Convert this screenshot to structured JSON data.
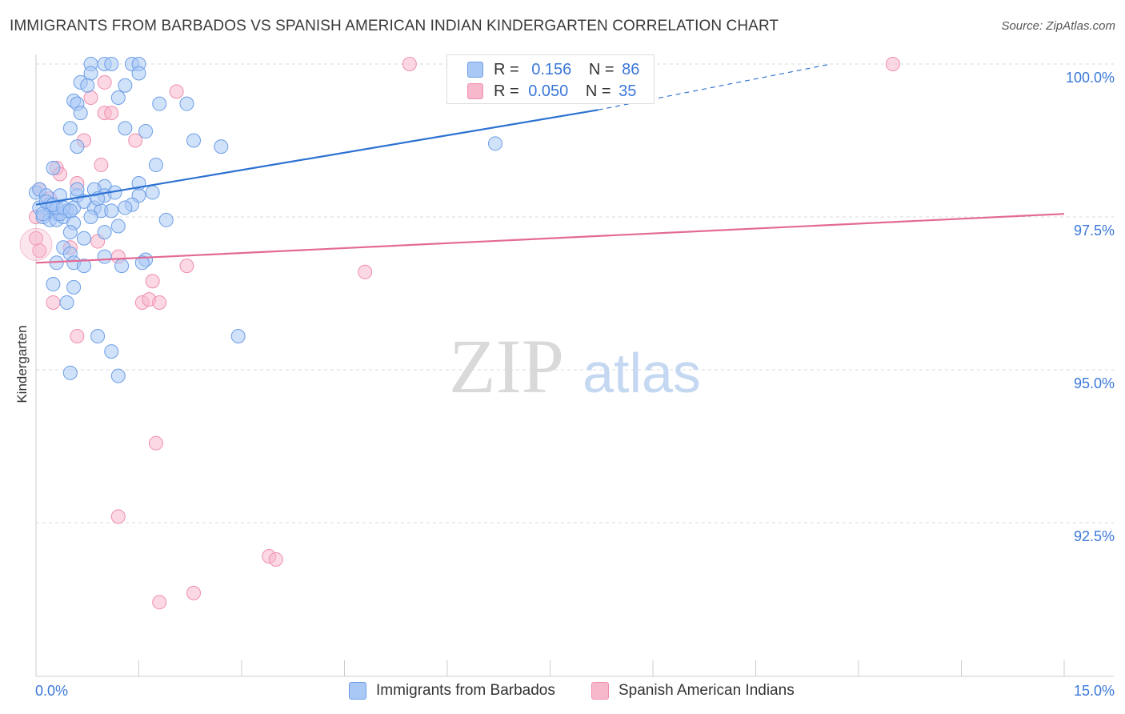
{
  "title": "IMMIGRANTS FROM BARBADOS VS SPANISH AMERICAN INDIAN KINDERGARTEN CORRELATION CHART",
  "source": "Source: ZipAtlas.com",
  "watermark": {
    "zip": "ZIP",
    "atlas": "atlas"
  },
  "legend": {
    "r_label": "R =",
    "n_label": "N =",
    "blue": {
      "r": "0.156",
      "n": "86"
    },
    "pink": {
      "r": "0.050",
      "n": "35"
    }
  },
  "colors": {
    "blue_fill": "#a9c8f5",
    "blue_stroke": "#6d9ee6",
    "blue_line": "#2d72d2",
    "pink_fill": "#f7b8cc",
    "pink_stroke": "#ef8fae",
    "pink_line": "#e46a96",
    "tick_text": "#3b78d8",
    "grid": "#d8d8d8"
  },
  "chart_data": {
    "type": "scatter",
    "title": "IMMIGRANTS FROM BARBADOS VS SPANISH AMERICAN INDIAN KINDERGARTEN CORRELATION CHART",
    "xlabel": "",
    "ylabel": "Kindergarten",
    "xlim": [
      0,
      15
    ],
    "ylim": [
      90.2,
      100.2
    ],
    "x_tick_labels": [
      "0.0%",
      "15.0%"
    ],
    "y_ticks": [
      92.5,
      95.0,
      97.5,
      100.0
    ],
    "y_tick_labels": [
      "92.5%",
      "95.0%",
      "97.5%",
      "100.0%"
    ],
    "grid": true,
    "series": [
      {
        "name": "Immigrants from Barbados",
        "color": "blue",
        "R": 0.156,
        "N": 86,
        "trend": {
          "x": [
            0.0,
            8.2
          ],
          "y": [
            97.7,
            99.25
          ],
          "dashed_to": [
            11.6,
            100.0
          ]
        },
        "points": [
          [
            0.8,
            100.0
          ],
          [
            1.0,
            100.0
          ],
          [
            1.1,
            100.0
          ],
          [
            1.4,
            100.0
          ],
          [
            1.5,
            100.0
          ],
          [
            0.8,
            99.85
          ],
          [
            1.5,
            99.85
          ],
          [
            0.65,
            99.7
          ],
          [
            0.75,
            99.65
          ],
          [
            1.3,
            99.65
          ],
          [
            0.55,
            99.4
          ],
          [
            0.6,
            99.35
          ],
          [
            1.2,
            99.45
          ],
          [
            1.8,
            99.35
          ],
          [
            2.2,
            99.35
          ],
          [
            0.65,
            99.2
          ],
          [
            1.3,
            98.95
          ],
          [
            0.5,
            98.95
          ],
          [
            1.6,
            98.9
          ],
          [
            2.3,
            98.75
          ],
          [
            0.6,
            98.65
          ],
          [
            2.7,
            98.65
          ],
          [
            6.7,
            98.7
          ],
          [
            0.25,
            98.3
          ],
          [
            1.5,
            98.05
          ],
          [
            1.0,
            98.0
          ],
          [
            0.85,
            97.95
          ],
          [
            0.0,
            97.9
          ],
          [
            0.05,
            97.95
          ],
          [
            0.15,
            97.85
          ],
          [
            0.35,
            97.85
          ],
          [
            0.6,
            97.85
          ],
          [
            1.0,
            97.85
          ],
          [
            1.5,
            97.85
          ],
          [
            1.7,
            97.9
          ],
          [
            0.05,
            97.65
          ],
          [
            0.2,
            97.6
          ],
          [
            0.3,
            97.55
          ],
          [
            0.45,
            97.6
          ],
          [
            0.55,
            97.65
          ],
          [
            0.85,
            97.65
          ],
          [
            0.95,
            97.6
          ],
          [
            1.1,
            97.6
          ],
          [
            0.1,
            97.5
          ],
          [
            0.2,
            97.45
          ],
          [
            0.3,
            97.45
          ],
          [
            0.4,
            97.5
          ],
          [
            0.55,
            97.4
          ],
          [
            1.2,
            97.35
          ],
          [
            1.9,
            97.45
          ],
          [
            0.5,
            97.25
          ],
          [
            0.7,
            97.15
          ],
          [
            1.0,
            97.25
          ],
          [
            0.4,
            97.0
          ],
          [
            0.5,
            96.9
          ],
          [
            1.0,
            96.85
          ],
          [
            1.25,
            96.7
          ],
          [
            1.6,
            96.8
          ],
          [
            1.55,
            96.75
          ],
          [
            0.3,
            96.75
          ],
          [
            0.55,
            96.75
          ],
          [
            0.7,
            96.7
          ],
          [
            0.25,
            96.4
          ],
          [
            0.55,
            96.35
          ],
          [
            0.45,
            96.1
          ],
          [
            0.9,
            95.55
          ],
          [
            2.95,
            95.55
          ],
          [
            1.1,
            95.3
          ],
          [
            0.5,
            94.95
          ],
          [
            1.2,
            94.9
          ],
          [
            0.2,
            97.7
          ],
          [
            0.7,
            97.75
          ],
          [
            1.4,
            97.7
          ],
          [
            0.1,
            97.55
          ],
          [
            0.35,
            97.55
          ],
          [
            0.9,
            97.8
          ],
          [
            1.15,
            97.9
          ],
          [
            0.15,
            97.75
          ],
          [
            0.3,
            97.65
          ],
          [
            1.75,
            98.35
          ],
          [
            0.6,
            97.95
          ],
          [
            0.25,
            97.7
          ],
          [
            0.4,
            97.65
          ],
          [
            0.8,
            97.5
          ],
          [
            0.5,
            97.6
          ],
          [
            1.3,
            97.65
          ]
        ]
      },
      {
        "name": "Spanish American Indians",
        "color": "pink",
        "R": 0.05,
        "N": 35,
        "trend": {
          "x": [
            0.0,
            15.0
          ],
          "y": [
            96.75,
            97.55
          ]
        },
        "points": [
          [
            5.45,
            100.0
          ],
          [
            12.5,
            100.0
          ],
          [
            1.0,
            99.7
          ],
          [
            2.05,
            99.55
          ],
          [
            0.8,
            99.45
          ],
          [
            1.0,
            99.2
          ],
          [
            1.1,
            99.2
          ],
          [
            0.7,
            98.75
          ],
          [
            1.45,
            98.75
          ],
          [
            0.95,
            98.35
          ],
          [
            0.3,
            98.3
          ],
          [
            0.35,
            98.2
          ],
          [
            0.05,
            97.95
          ],
          [
            0.2,
            97.8
          ],
          [
            0.0,
            97.5
          ],
          [
            0.0,
            97.15
          ],
          [
            0.05,
            96.95
          ],
          [
            0.5,
            97.0
          ],
          [
            0.9,
            97.1
          ],
          [
            1.2,
            96.85
          ],
          [
            2.2,
            96.7
          ],
          [
            4.8,
            96.6
          ],
          [
            1.7,
            96.45
          ],
          [
            0.25,
            96.1
          ],
          [
            1.55,
            96.1
          ],
          [
            1.65,
            96.15
          ],
          [
            1.8,
            96.1
          ],
          [
            0.6,
            95.55
          ],
          [
            1.75,
            93.8
          ],
          [
            1.2,
            92.6
          ],
          [
            3.4,
            91.95
          ],
          [
            3.5,
            91.9
          ],
          [
            2.3,
            91.35
          ],
          [
            1.8,
            91.2
          ],
          [
            0.6,
            98.05
          ]
        ]
      }
    ]
  },
  "bottom_legend": [
    "Immigrants from Barbados",
    "Spanish American Indians"
  ]
}
